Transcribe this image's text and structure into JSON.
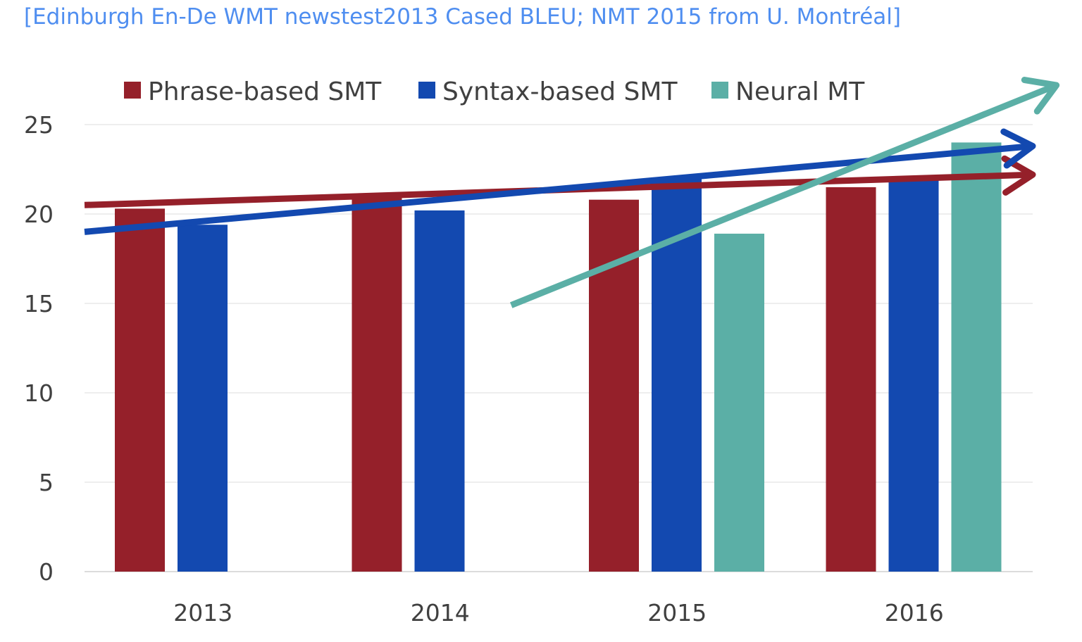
{
  "caption": "[Edinburgh En-De WMT newstest2013 Cased BLEU; NMT 2015 from U. Montréal]",
  "chart_data": {
    "type": "bar",
    "title": "",
    "xlabel": "",
    "ylabel": "",
    "categories": [
      "2013",
      "2014",
      "2015",
      "2016"
    ],
    "ylim": [
      0,
      25
    ],
    "yticks": [
      0,
      5,
      10,
      15,
      20,
      25
    ],
    "grid": true,
    "legend_position": "top",
    "series": [
      {
        "name": "Phrase-based SMT",
        "color": "#95202a",
        "values": [
          20.3,
          20.9,
          20.8,
          21.5
        ]
      },
      {
        "name": "Syntax-based SMT",
        "color": "#1349b0",
        "values": [
          19.4,
          20.2,
          22.0,
          22.1
        ]
      },
      {
        "name": "Neural MT",
        "color": "#5bafa6",
        "values": [
          null,
          null,
          18.9,
          24.0
        ]
      }
    ],
    "annotations": [
      {
        "type": "trend-arrow",
        "series": "Phrase-based SMT",
        "color": "#95202a",
        "from": [
          2012.5,
          20.5
        ],
        "to": [
          2016.5,
          22.2
        ]
      },
      {
        "type": "trend-arrow",
        "series": "Syntax-based SMT",
        "color": "#1349b0",
        "from": [
          2012.5,
          19.0
        ],
        "to": [
          2016.5,
          23.8
        ]
      },
      {
        "type": "trend-arrow",
        "series": "Neural MT",
        "color": "#5bafa6",
        "from": [
          2014.3,
          14.9
        ],
        "to": [
          2016.6,
          27.2
        ]
      }
    ]
  }
}
